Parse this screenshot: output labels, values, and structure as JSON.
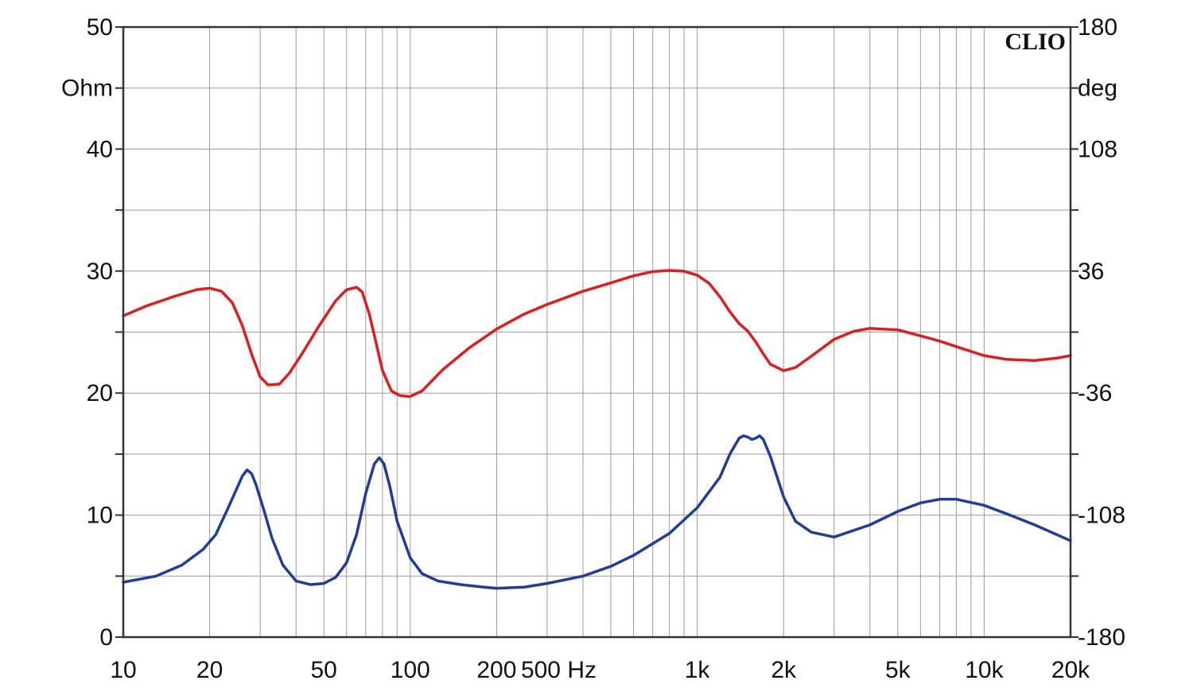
{
  "chart_data": {
    "type": "line",
    "brand": "CLIO",
    "x_scale": "log",
    "xlim": [
      10,
      20000
    ],
    "y_left": {
      "unit": "Ohm",
      "lim": [
        0,
        50
      ],
      "ticks": [
        0,
        10,
        20,
        30,
        40,
        50
      ]
    },
    "y_right": {
      "unit": "deg",
      "lim": [
        -180,
        180
      ],
      "ticks": [
        -180,
        -108,
        -36,
        36,
        108,
        180
      ]
    },
    "x_ticks": [
      {
        "value": 10,
        "label": "10"
      },
      {
        "value": 20,
        "label": "20"
      },
      {
        "value": 50,
        "label": "50"
      },
      {
        "value": 100,
        "label": "100"
      },
      {
        "value": 200,
        "label": "200"
      },
      {
        "value": 500,
        "label": "500 Hz"
      },
      {
        "value": 1000,
        "label": "1k"
      },
      {
        "value": 2000,
        "label": "2k"
      },
      {
        "value": 5000,
        "label": "5k"
      },
      {
        "value": 10000,
        "label": "10k"
      },
      {
        "value": 20000,
        "label": "20k"
      }
    ],
    "grid": true,
    "series": [
      {
        "axis": "right",
        "color": "#e01c1c",
        "points": [
          [
            10,
            9.6
          ],
          [
            12,
            15.3
          ],
          [
            15,
            21.0
          ],
          [
            18,
            25.0
          ],
          [
            20,
            25.9
          ],
          [
            22,
            24.1
          ],
          [
            24,
            17.3
          ],
          [
            26,
            3.8
          ],
          [
            28,
            -13.0
          ],
          [
            30,
            -26.4
          ],
          [
            32,
            -31.2
          ],
          [
            35,
            -30.7
          ],
          [
            38,
            -24.0
          ],
          [
            42,
            -12.7
          ],
          [
            48,
            3.4
          ],
          [
            55,
            18.5
          ],
          [
            60,
            25.0
          ],
          [
            65,
            26.4
          ],
          [
            68,
            23.7
          ],
          [
            72,
            10.7
          ],
          [
            76,
            -6.2
          ],
          [
            80,
            -22.6
          ],
          [
            86,
            -34.7
          ],
          [
            92,
            -37.5
          ],
          [
            100,
            -38.0
          ],
          [
            110,
            -34.7
          ],
          [
            130,
            -22.1
          ],
          [
            160,
            -9.5
          ],
          [
            200,
            1.8
          ],
          [
            250,
            10.7
          ],
          [
            300,
            16.3
          ],
          [
            400,
            24.1
          ],
          [
            500,
            29.0
          ],
          [
            600,
            33.2
          ],
          [
            700,
            35.7
          ],
          [
            800,
            36.4
          ],
          [
            900,
            35.9
          ],
          [
            1000,
            33.6
          ],
          [
            1100,
            28.8
          ],
          [
            1200,
            20.9
          ],
          [
            1300,
            12.0
          ],
          [
            1400,
            5.0
          ],
          [
            1500,
            0.6
          ],
          [
            1600,
            -5.8
          ],
          [
            1700,
            -12.9
          ],
          [
            1800,
            -19.0
          ],
          [
            2000,
            -22.8
          ],
          [
            2200,
            -20.9
          ],
          [
            2500,
            -14.2
          ],
          [
            3000,
            -4.3
          ],
          [
            3500,
            0.4
          ],
          [
            4000,
            2.2
          ],
          [
            5000,
            1.3
          ],
          [
            6000,
            -2.2
          ],
          [
            7000,
            -5.3
          ],
          [
            8000,
            -8.6
          ],
          [
            10000,
            -13.9
          ],
          [
            12000,
            -16.1
          ],
          [
            15000,
            -16.8
          ],
          [
            18000,
            -15.3
          ],
          [
            20000,
            -13.9
          ]
        ]
      },
      {
        "axis": "left",
        "color": "#1e3d9e",
        "points": [
          [
            10,
            4.5
          ],
          [
            13,
            5.0
          ],
          [
            16,
            5.9
          ],
          [
            19,
            7.2
          ],
          [
            21,
            8.4
          ],
          [
            23,
            10.4
          ],
          [
            25,
            12.3
          ],
          [
            26,
            13.2
          ],
          [
            27,
            13.7
          ],
          [
            28,
            13.4
          ],
          [
            29,
            12.5
          ],
          [
            31,
            10.3
          ],
          [
            33,
            8.1
          ],
          [
            36,
            5.9
          ],
          [
            40,
            4.6
          ],
          [
            45,
            4.3
          ],
          [
            50,
            4.4
          ],
          [
            55,
            4.9
          ],
          [
            60,
            6.1
          ],
          [
            65,
            8.4
          ],
          [
            70,
            11.8
          ],
          [
            75,
            14.2
          ],
          [
            78,
            14.7
          ],
          [
            81,
            14.2
          ],
          [
            85,
            12.3
          ],
          [
            90,
            9.5
          ],
          [
            100,
            6.5
          ],
          [
            110,
            5.2
          ],
          [
            125,
            4.6
          ],
          [
            150,
            4.3
          ],
          [
            180,
            4.1
          ],
          [
            200,
            4.0
          ],
          [
            250,
            4.1
          ],
          [
            300,
            4.4
          ],
          [
            400,
            5.0
          ],
          [
            500,
            5.8
          ],
          [
            600,
            6.7
          ],
          [
            800,
            8.5
          ],
          [
            1000,
            10.6
          ],
          [
            1200,
            13.1
          ],
          [
            1300,
            15.0
          ],
          [
            1400,
            16.3
          ],
          [
            1450,
            16.5
          ],
          [
            1500,
            16.4
          ],
          [
            1550,
            16.2
          ],
          [
            1600,
            16.3
          ],
          [
            1650,
            16.5
          ],
          [
            1700,
            16.2
          ],
          [
            1800,
            14.8
          ],
          [
            2000,
            11.5
          ],
          [
            2200,
            9.5
          ],
          [
            2500,
            8.6
          ],
          [
            3000,
            8.2
          ],
          [
            4000,
            9.2
          ],
          [
            5000,
            10.3
          ],
          [
            6000,
            11.0
          ],
          [
            7000,
            11.3
          ],
          [
            8000,
            11.3
          ],
          [
            10000,
            10.8
          ],
          [
            12000,
            10.1
          ],
          [
            15000,
            9.2
          ],
          [
            20000,
            7.9
          ]
        ]
      }
    ]
  }
}
